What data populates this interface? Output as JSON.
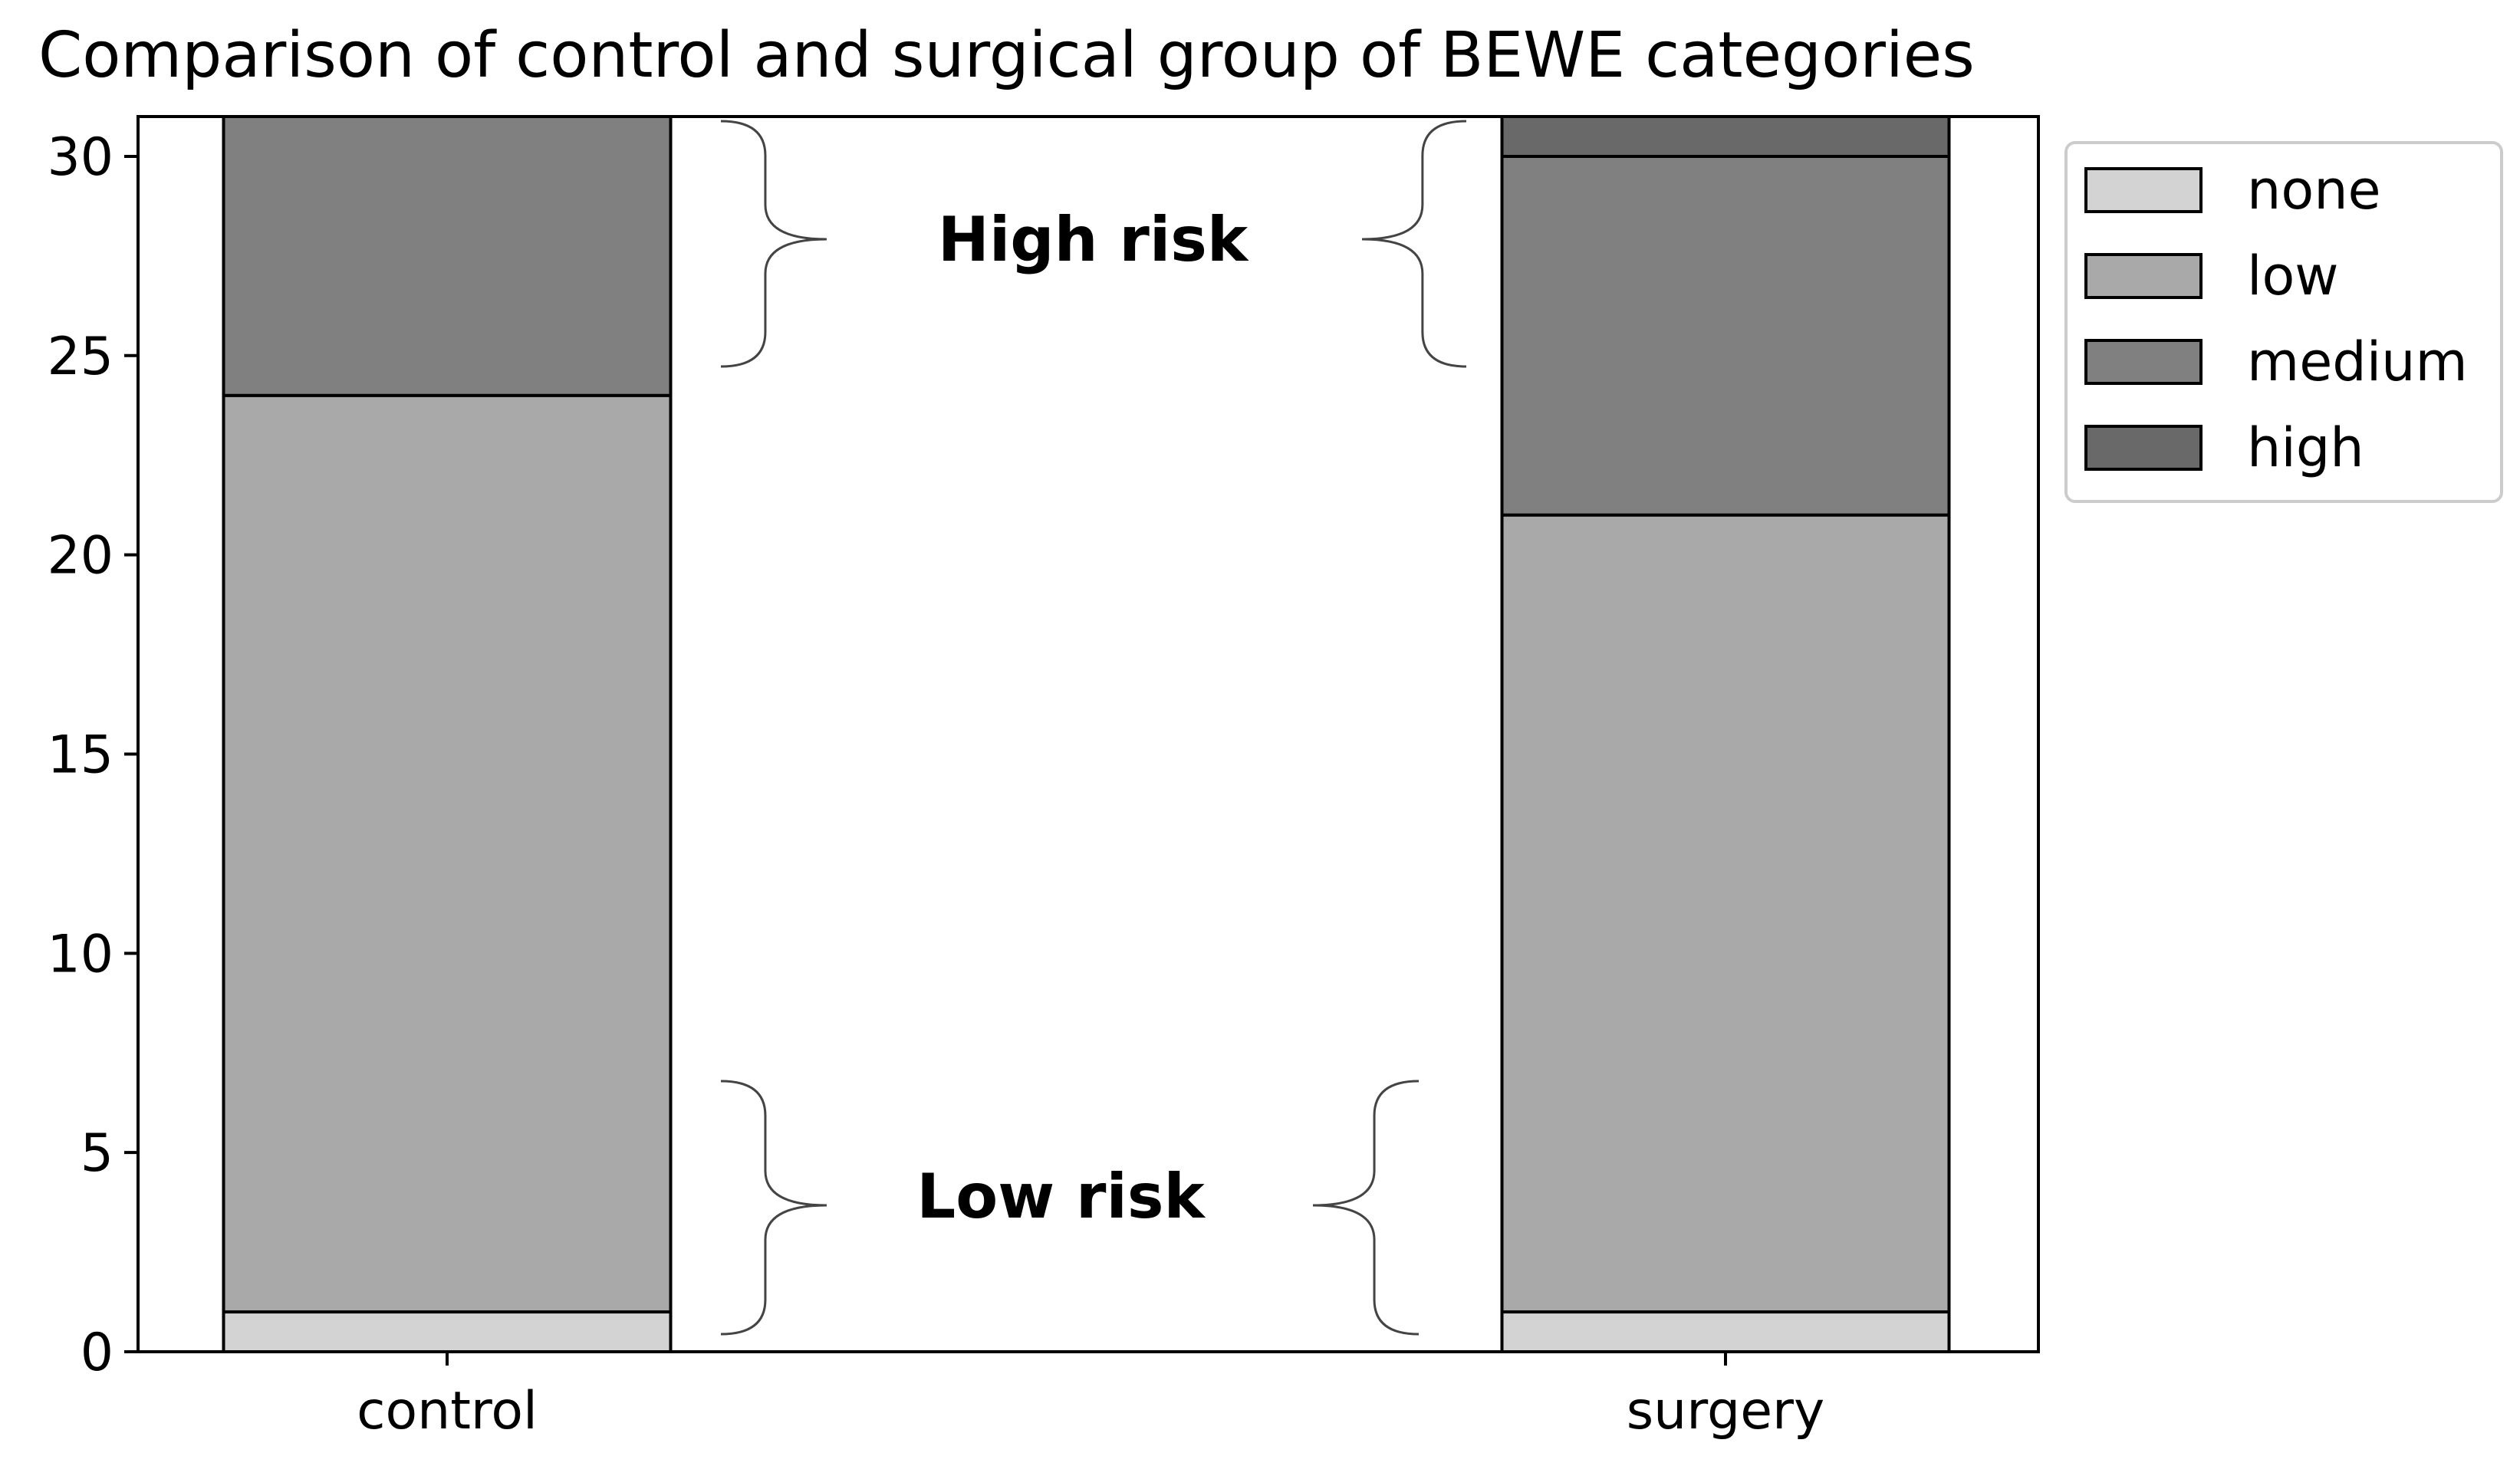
{
  "chart_data": {
    "type": "bar",
    "stacked": true,
    "title": "Comparison of control and surgical group of BEWE categories",
    "xlabel": "",
    "ylabel": "",
    "categories": [
      "control",
      "surgery"
    ],
    "series": [
      {
        "name": "none",
        "values": [
          1,
          1
        ],
        "color": "#d3d3d3"
      },
      {
        "name": "low",
        "values": [
          23,
          20
        ],
        "color": "#a9a9a9"
      },
      {
        "name": "medium",
        "values": [
          7,
          9
        ],
        "color": "#808080"
      },
      {
        "name": "high",
        "values": [
          0,
          1
        ],
        "color": "#696969"
      }
    ],
    "ylim": [
      0,
      31
    ],
    "yticks": [
      0,
      5,
      10,
      15,
      20,
      25,
      30
    ],
    "grid": false,
    "legend_position": "top-right (outside plot)",
    "annotations": [
      {
        "text": "High risk"
      },
      {
        "text": "Low risk"
      }
    ]
  }
}
